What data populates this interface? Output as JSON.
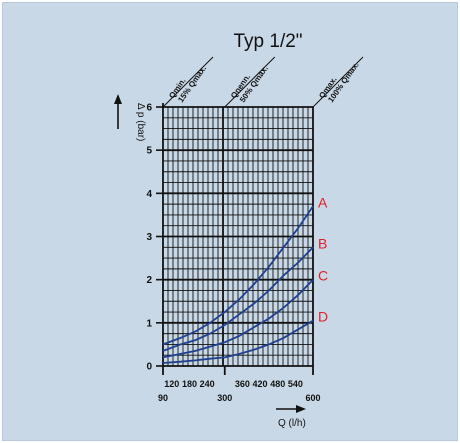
{
  "chart_data": {
    "type": "line",
    "title": "Typ 1/2\"",
    "xlabel": "Q (l/h)",
    "ylabel": "Δ p (bar)",
    "xlim": [
      90,
      600
    ],
    "ylim": [
      0,
      6
    ],
    "xticks_major": [
      "90",
      "300",
      "600"
    ],
    "xticks_minor": [
      "120",
      "180",
      "240",
      "360",
      "420",
      "480",
      "540"
    ],
    "yticks": [
      "0",
      "1",
      "2",
      "3",
      "4",
      "5",
      "6"
    ],
    "grid": true,
    "top_annotations": [
      {
        "x": 90,
        "line1": "Qmin.",
        "line2": "15% Qmax."
      },
      {
        "x": 300,
        "line1": "Qnenn.",
        "line2": "50% Qmax."
      },
      {
        "x": 600,
        "line1": "Qmax.",
        "line2": "100% Qmax."
      }
    ],
    "series": [
      {
        "name": "A",
        "x": [
          90,
          150,
          200,
          250,
          300,
          350,
          400,
          450,
          500,
          550,
          600
        ],
        "y": [
          0.5,
          0.65,
          0.8,
          1.0,
          1.25,
          1.55,
          1.9,
          2.3,
          2.75,
          3.2,
          3.7
        ]
      },
      {
        "name": "B",
        "x": [
          90,
          150,
          200,
          250,
          300,
          350,
          400,
          450,
          500,
          550,
          600
        ],
        "y": [
          0.35,
          0.5,
          0.6,
          0.75,
          0.95,
          1.2,
          1.45,
          1.75,
          2.1,
          2.4,
          2.75
        ]
      },
      {
        "name": "C",
        "x": [
          90,
          150,
          200,
          250,
          300,
          350,
          400,
          450,
          500,
          550,
          600
        ],
        "y": [
          0.2,
          0.28,
          0.35,
          0.45,
          0.55,
          0.7,
          0.9,
          1.1,
          1.35,
          1.65,
          2.0
        ]
      },
      {
        "name": "D",
        "x": [
          90,
          150,
          200,
          250,
          300,
          350,
          400,
          450,
          500,
          550,
          600
        ],
        "y": [
          0.07,
          0.1,
          0.13,
          0.17,
          0.2,
          0.28,
          0.38,
          0.5,
          0.65,
          0.85,
          1.05
        ]
      }
    ],
    "colors": {
      "curves": "#1f3f8f",
      "curve_labels": "#e0202a",
      "background": "#c9d8e6",
      "grid": "#111111"
    }
  }
}
